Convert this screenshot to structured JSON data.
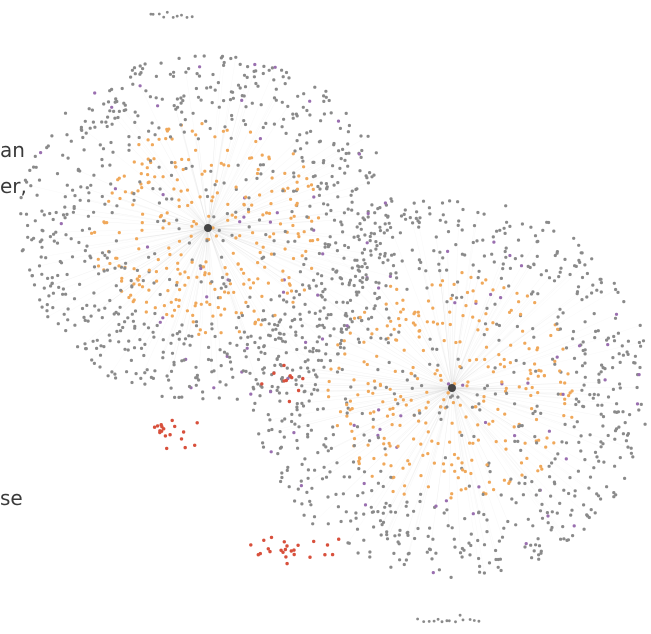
{
  "text_fragments": {
    "line_1": "an",
    "line_2": "er,",
    "line_3": "se"
  },
  "graph": {
    "type": "network",
    "clusters": 2,
    "node_categories": [
      {
        "name": "hub",
        "color": "#444444"
      },
      {
        "name": "default",
        "color": "#8a8a8a"
      },
      {
        "name": "orange",
        "color": "#f0a85a"
      },
      {
        "name": "purple",
        "color": "#9a6fb0"
      },
      {
        "name": "red",
        "color": "#d8503c"
      }
    ],
    "edge_color": "#c8c8c8"
  }
}
